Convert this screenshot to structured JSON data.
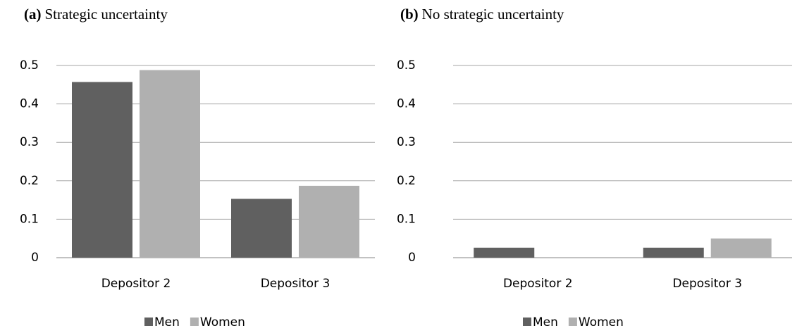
{
  "chart_data": [
    {
      "type": "bar",
      "panel": "(a)",
      "title": "Strategic uncertainty",
      "categories": [
        "Depositor 2",
        "Depositor 3"
      ],
      "series": [
        {
          "name": "Men",
          "color": "#606060",
          "values": [
            0.457,
            0.153
          ]
        },
        {
          "name": "Women",
          "color": "#b0b0b0",
          "values": [
            0.488,
            0.187
          ]
        }
      ],
      "ylim": [
        0,
        0.5
      ],
      "yticks": [
        0,
        0.1,
        0.2,
        0.3,
        0.4,
        0.5
      ],
      "grid": true,
      "legend": "bottom"
    },
    {
      "type": "bar",
      "panel": "(b)",
      "title": "No strategic uncertainty",
      "categories": [
        "Depositor 2",
        "Depositor 3"
      ],
      "series": [
        {
          "name": "Men",
          "color": "#606060",
          "values": [
            0.026,
            0.026
          ]
        },
        {
          "name": "Women",
          "color": "#b0b0b0",
          "values": [
            0,
            0.05
          ]
        }
      ],
      "ylim": [
        0,
        0.5
      ],
      "yticks": [
        0,
        0.1,
        0.2,
        0.3,
        0.4,
        0.5
      ],
      "grid": true,
      "legend": "bottom"
    }
  ]
}
